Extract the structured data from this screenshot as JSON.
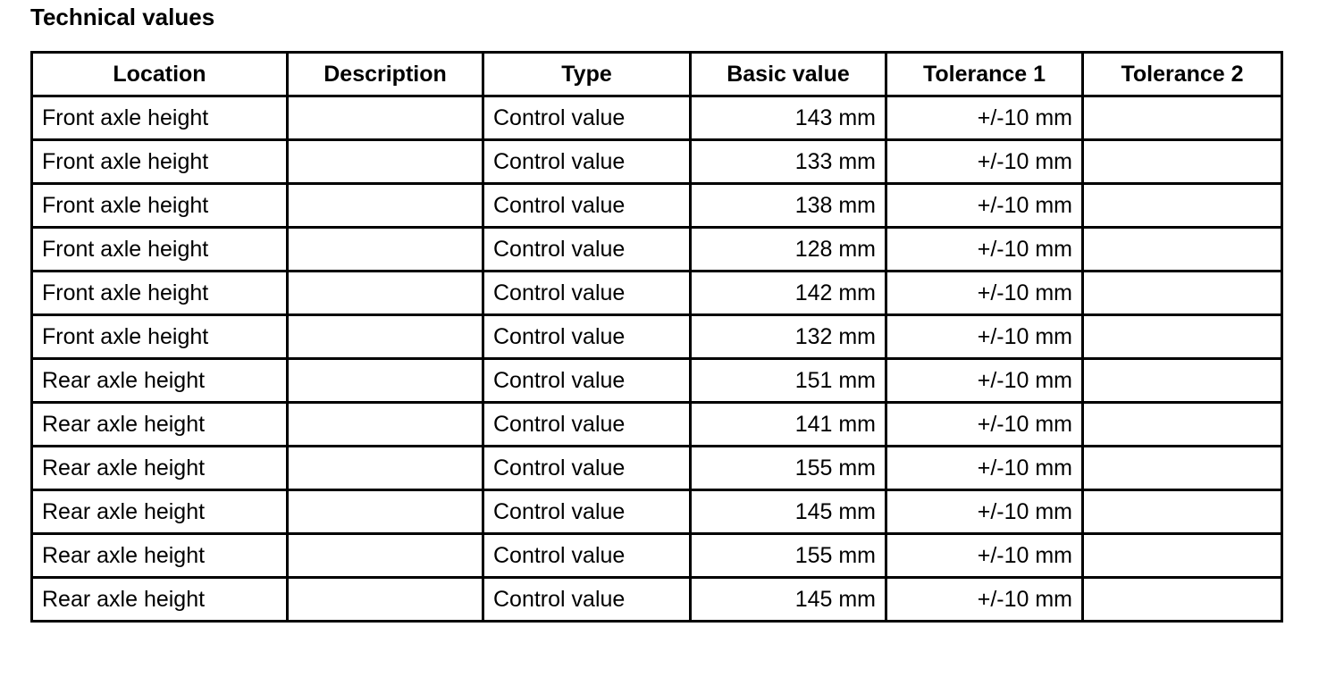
{
  "title": "Technical values",
  "table": {
    "headers": [
      "Location",
      "Description",
      "Type",
      "Basic value",
      "Tolerance 1",
      "Tolerance 2"
    ],
    "rows": [
      {
        "location": "Front axle height",
        "type": "Control value",
        "basic_value": "143 mm",
        "tolerance_1": "+/-10 mm"
      },
      {
        "location": "Front axle height",
        "type": "Control value",
        "basic_value": "133 mm",
        "tolerance_1": "+/-10 mm"
      },
      {
        "location": "Front axle height",
        "type": "Control value",
        "basic_value": "138 mm",
        "tolerance_1": "+/-10 mm"
      },
      {
        "location": "Front axle height",
        "type": "Control value",
        "basic_value": "128 mm",
        "tolerance_1": "+/-10 mm"
      },
      {
        "location": "Front axle height",
        "type": "Control value",
        "basic_value": "142 mm",
        "tolerance_1": "+/-10 mm"
      },
      {
        "location": "Front axle height",
        "type": "Control value",
        "basic_value": "132 mm",
        "tolerance_1": "+/-10 mm"
      },
      {
        "location": "Rear axle height",
        "type": "Control value",
        "basic_value": "151 mm",
        "tolerance_1": "+/-10 mm"
      },
      {
        "location": "Rear axle height",
        "type": "Control value",
        "basic_value": "141 mm",
        "tolerance_1": "+/-10 mm"
      },
      {
        "location": "Rear axle height",
        "type": "Control value",
        "basic_value": "155 mm",
        "tolerance_1": "+/-10 mm"
      },
      {
        "location": "Rear axle height",
        "type": "Control value",
        "basic_value": "145 mm",
        "tolerance_1": "+/-10 mm"
      },
      {
        "location": "Rear axle height",
        "type": "Control value",
        "basic_value": "155 mm",
        "tolerance_1": "+/-10 mm"
      },
      {
        "location": "Rear axle height",
        "type": "Control value",
        "basic_value": "145 mm",
        "tolerance_1": "+/-10 mm"
      }
    ]
  }
}
